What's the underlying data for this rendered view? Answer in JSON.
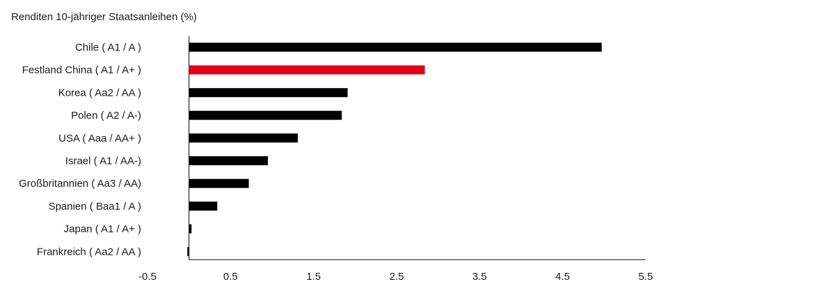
{
  "chart_data": {
    "type": "bar",
    "orientation": "horizontal",
    "title": "Renditen 10-jähriger Staatsanleihen (%)",
    "xlabel": "",
    "ylabel": "",
    "categories": [
      "Chile ( A1 / A )",
      "Festland China ( A1 / A+ )",
      "Korea ( Aa2 / AA )",
      "Polen ( A2 / A-)",
      "USA ( Aaa / AA+ )",
      "Israel ( A1 / AA-)",
      "Großbritannien ( Aa3 / AA)",
      "Spanien ( Baa1 / A )",
      "Japan ( A1 / A+ )",
      "Frankreich ( Aa2 / AA )"
    ],
    "values": [
      4.97,
      2.84,
      1.91,
      1.84,
      1.31,
      0.95,
      0.72,
      0.34,
      0.03,
      -0.02
    ],
    "highlight_index": 1,
    "colors": {
      "default": "#000000",
      "highlight": "#e2001a"
    },
    "xlim": [
      -0.5,
      5.5
    ],
    "xticks": [
      "-0.5",
      "0.5",
      "1.5",
      "2.5",
      "3.5",
      "4.5",
      "5.5"
    ],
    "grid": false,
    "legend": "none"
  }
}
